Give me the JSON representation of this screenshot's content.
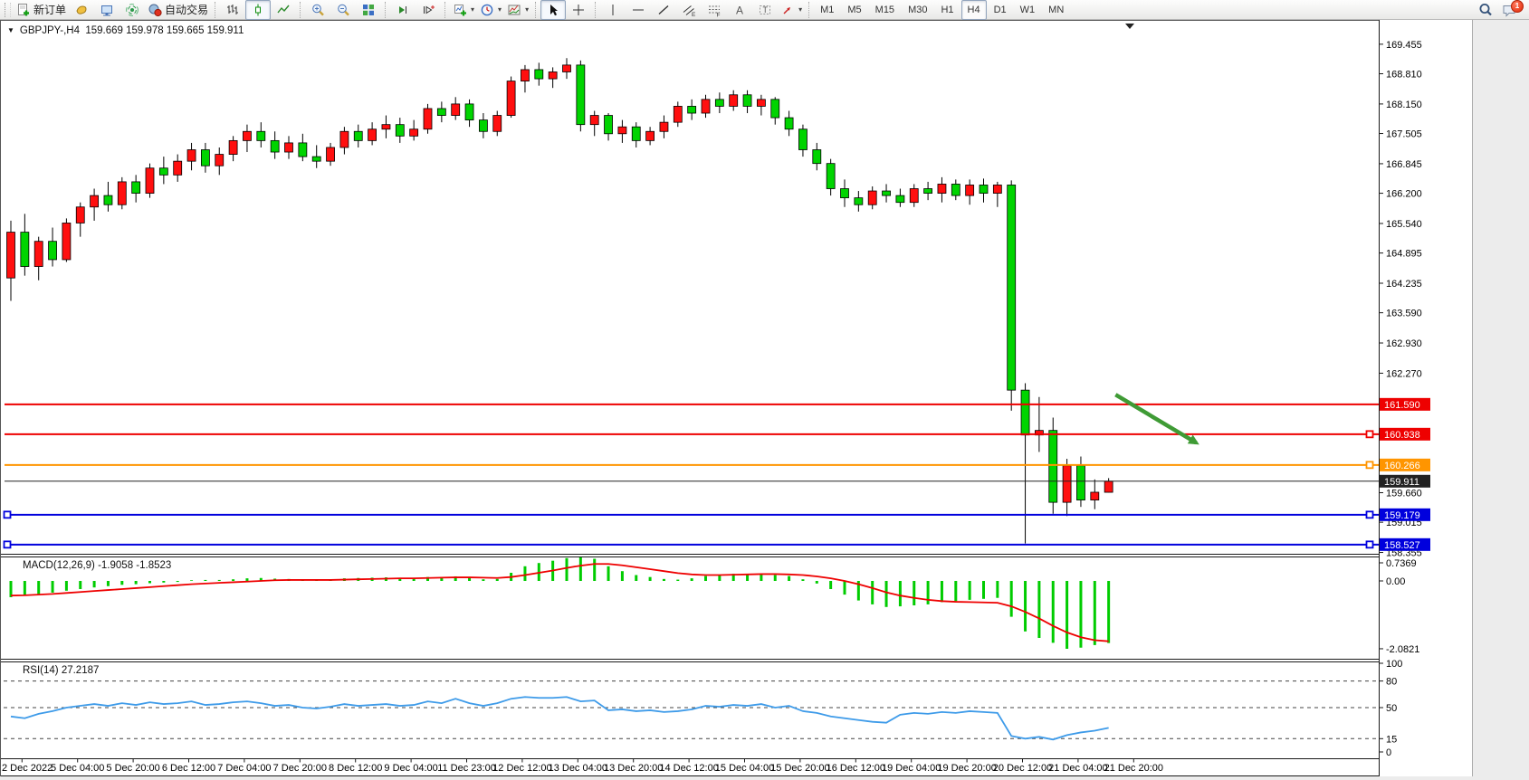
{
  "toolbar": {
    "new_order_label": "新订单",
    "autotrade_label": "自动交易",
    "timeframes": [
      "M1",
      "M5",
      "M15",
      "M30",
      "H1",
      "H4",
      "D1",
      "W1",
      "MN"
    ],
    "active_timeframe": "H4",
    "notification_count": "1"
  },
  "chart": {
    "title": "GBPJPY-,H4",
    "ohlc_text": "159.669 159.978 159.665 159.911",
    "macd_label": "MACD(12,26,9) -1.9058 -1.8523",
    "rsi_label": "RSI(14) 27.2187"
  },
  "axes": {
    "price_ticks": [
      "169.455",
      "168.810",
      "168.150",
      "167.505",
      "166.845",
      "166.200",
      "165.540",
      "164.895",
      "164.235",
      "163.590",
      "162.930",
      "162.270",
      "159.660",
      "159.015",
      "158.355"
    ],
    "macd_ticks": [
      "0.7369",
      "0.00",
      "-2.0821"
    ],
    "rsi_ticks": [
      "100",
      "80",
      "50",
      "15",
      "0"
    ],
    "rsi_dashed_levels": [
      80,
      50,
      15
    ],
    "dates": [
      "2 Dec 2022",
      "5 Dec 04:00",
      "5 Dec 20:00",
      "6 Dec 12:00",
      "7 Dec 04:00",
      "7 Dec 20:00",
      "8 Dec 12:00",
      "9 Dec 04:00",
      "11 Dec 23:00",
      "12 Dec 12:00",
      "13 Dec 04:00",
      "13 Dec 20:00",
      "14 Dec 12:00",
      "15 Dec 04:00",
      "15 Dec 20:00",
      "16 Dec 12:00",
      "19 Dec 04:00",
      "19 Dec 20:00",
      "20 Dec 12:00",
      "21 Dec 04:00",
      "21 Dec 20:00"
    ]
  },
  "levels": [
    {
      "label": "161.590",
      "price": 161.59,
      "color": "#ee0000",
      "text_color": "#ffffff",
      "width": 2,
      "handles": []
    },
    {
      "label": "160.938",
      "price": 160.938,
      "color": "#ee0000",
      "text_color": "#ffffff",
      "width": 2,
      "handles": [
        "right"
      ]
    },
    {
      "label": "160.266",
      "price": 160.266,
      "color": "#ff9500",
      "text_color": "#ffffff",
      "width": 2,
      "handles": [
        "right"
      ]
    },
    {
      "label": "159.911",
      "price": 159.911,
      "color": "#222222",
      "text_color": "#ffffff",
      "width": 1,
      "handles": []
    },
    {
      "label": "159.179",
      "price": 159.179,
      "color": "#0000dd",
      "text_color": "#ffffff",
      "width": 2,
      "handles": [
        "left",
        "right"
      ]
    },
    {
      "label": "158.527",
      "price": 158.527,
      "color": "#0000dd",
      "text_color": "#ffffff",
      "width": 2,
      "handles": [
        "left",
        "right"
      ]
    }
  ],
  "objects": {
    "trend_arrow": {
      "from_bar": 79.5,
      "from_price": 161.8,
      "to_bar": 85.3,
      "to_price": 160.75,
      "color": "#3f9b35"
    }
  },
  "chart_data": {
    "type": "candlestick",
    "symbol": "GBPJPY-",
    "timeframe": "H4",
    "bull_color": "#ff0f0f",
    "bear_color": "#00d400",
    "wick_color": "#000000",
    "price_axis_top": 169.455,
    "price_axis_bottom": 158.355,
    "candles": [
      [
        164.35,
        165.6,
        163.85,
        165.35
      ],
      [
        165.35,
        165.75,
        164.4,
        164.6
      ],
      [
        164.6,
        165.25,
        164.3,
        165.15
      ],
      [
        165.15,
        165.45,
        164.6,
        164.75
      ],
      [
        164.75,
        165.65,
        164.7,
        165.55
      ],
      [
        165.55,
        166.0,
        165.25,
        165.9
      ],
      [
        165.9,
        166.3,
        165.6,
        166.15
      ],
      [
        166.15,
        166.45,
        165.8,
        165.95
      ],
      [
        165.95,
        166.55,
        165.85,
        166.45
      ],
      [
        166.45,
        166.6,
        166.0,
        166.2
      ],
      [
        166.2,
        166.85,
        166.1,
        166.75
      ],
      [
        166.75,
        167.0,
        166.4,
        166.6
      ],
      [
        166.6,
        167.05,
        166.45,
        166.9
      ],
      [
        166.9,
        167.3,
        166.7,
        167.15
      ],
      [
        167.15,
        167.3,
        166.65,
        166.8
      ],
      [
        166.8,
        167.2,
        166.6,
        167.05
      ],
      [
        167.05,
        167.45,
        166.9,
        167.35
      ],
      [
        167.35,
        167.7,
        167.1,
        167.55
      ],
      [
        167.55,
        167.75,
        167.2,
        167.35
      ],
      [
        167.35,
        167.55,
        166.95,
        167.1
      ],
      [
        167.1,
        167.45,
        166.95,
        167.3
      ],
      [
        167.3,
        167.5,
        166.9,
        167.0
      ],
      [
        167.0,
        167.25,
        166.75,
        166.9
      ],
      [
        166.9,
        167.3,
        166.8,
        167.2
      ],
      [
        167.2,
        167.65,
        167.05,
        167.55
      ],
      [
        167.55,
        167.7,
        167.2,
        167.35
      ],
      [
        167.35,
        167.75,
        167.25,
        167.6
      ],
      [
        167.6,
        167.9,
        167.4,
        167.7
      ],
      [
        167.7,
        167.85,
        167.3,
        167.45
      ],
      [
        167.45,
        167.8,
        167.35,
        167.6
      ],
      [
        167.6,
        168.15,
        167.5,
        168.05
      ],
      [
        168.05,
        168.2,
        167.75,
        167.9
      ],
      [
        167.9,
        168.3,
        167.8,
        168.15
      ],
      [
        168.15,
        168.25,
        167.65,
        167.8
      ],
      [
        167.8,
        167.95,
        167.4,
        167.55
      ],
      [
        167.55,
        168.0,
        167.45,
        167.9
      ],
      [
        167.9,
        168.75,
        167.85,
        168.65
      ],
      [
        168.65,
        169.0,
        168.4,
        168.9
      ],
      [
        168.9,
        169.05,
        168.55,
        168.7
      ],
      [
        168.7,
        168.95,
        168.5,
        168.85
      ],
      [
        168.85,
        169.15,
        168.7,
        169.0
      ],
      [
        169.0,
        169.1,
        167.55,
        167.7
      ],
      [
        167.7,
        168.0,
        167.45,
        167.9
      ],
      [
        167.9,
        167.95,
        167.35,
        167.5
      ],
      [
        167.5,
        167.8,
        167.3,
        167.65
      ],
      [
        167.65,
        167.75,
        167.2,
        167.35
      ],
      [
        167.35,
        167.65,
        167.25,
        167.55
      ],
      [
        167.55,
        167.9,
        167.4,
        167.75
      ],
      [
        167.75,
        168.2,
        167.65,
        168.1
      ],
      [
        168.1,
        168.25,
        167.8,
        167.95
      ],
      [
        167.95,
        168.35,
        167.85,
        168.25
      ],
      [
        168.25,
        168.4,
        167.95,
        168.1
      ],
      [
        168.1,
        168.45,
        168.0,
        168.35
      ],
      [
        168.35,
        168.45,
        167.95,
        168.1
      ],
      [
        168.1,
        168.35,
        167.9,
        168.25
      ],
      [
        168.25,
        168.3,
        167.7,
        167.85
      ],
      [
        167.85,
        168.0,
        167.45,
        167.6
      ],
      [
        167.6,
        167.7,
        167.0,
        167.15
      ],
      [
        167.15,
        167.3,
        166.7,
        166.85
      ],
      [
        166.85,
        166.95,
        166.15,
        166.3
      ],
      [
        166.3,
        166.5,
        165.9,
        166.1
      ],
      [
        166.1,
        166.25,
        165.8,
        165.95
      ],
      [
        165.95,
        166.35,
        165.85,
        166.25
      ],
      [
        166.25,
        166.4,
        166.0,
        166.15
      ],
      [
        166.15,
        166.3,
        165.9,
        166.0
      ],
      [
        166.0,
        166.4,
        165.9,
        166.3
      ],
      [
        166.3,
        166.45,
        166.05,
        166.2
      ],
      [
        166.2,
        166.55,
        166.0,
        166.4
      ],
      [
        166.4,
        166.5,
        166.05,
        166.15
      ],
      [
        166.15,
        166.5,
        165.95,
        166.38
      ],
      [
        166.38,
        166.52,
        166.0,
        166.2
      ],
      [
        166.2,
        166.45,
        165.9,
        166.38
      ],
      [
        166.38,
        166.48,
        161.45,
        161.9
      ],
      [
        161.9,
        162.05,
        158.55,
        160.92
      ],
      [
        160.92,
        161.75,
        160.55,
        161.02
      ],
      [
        161.02,
        161.3,
        159.2,
        159.45
      ],
      [
        159.45,
        160.4,
        159.15,
        160.25
      ],
      [
        160.25,
        160.45,
        159.35,
        159.5
      ],
      [
        159.5,
        159.95,
        159.3,
        159.67
      ],
      [
        159.669,
        159.978,
        159.665,
        159.911
      ]
    ],
    "macd": {
      "params": "12,26,9",
      "main": -1.9058,
      "signal_value": -1.8523,
      "histogram_color": "#00cc00",
      "signal_color": "#ee0000",
      "histogram": [
        -0.5,
        -0.44,
        -0.4,
        -0.36,
        -0.3,
        -0.25,
        -0.2,
        -0.16,
        -0.12,
        -0.1,
        -0.07,
        -0.05,
        -0.03,
        0.02,
        0.03,
        0.03,
        0.05,
        0.08,
        0.09,
        0.07,
        0.06,
        0.04,
        0.03,
        0.04,
        0.08,
        0.09,
        0.1,
        0.11,
        0.09,
        0.08,
        0.12,
        0.12,
        0.14,
        0.1,
        0.05,
        0.06,
        0.25,
        0.45,
        0.55,
        0.62,
        0.7,
        0.7369,
        0.68,
        0.45,
        0.3,
        0.18,
        0.12,
        0.06,
        0.04,
        0.08,
        0.15,
        0.18,
        0.22,
        0.2,
        0.22,
        0.18,
        0.15,
        0.05,
        -0.08,
        -0.25,
        -0.42,
        -0.6,
        -0.72,
        -0.8,
        -0.78,
        -0.75,
        -0.72,
        -0.65,
        -0.62,
        -0.58,
        -0.55,
        -0.52,
        -1.1,
        -1.55,
        -1.75,
        -1.9,
        -2.0821,
        -2.05,
        -1.97,
        -1.9058
      ],
      "signal": [
        -0.45,
        -0.44,
        -0.42,
        -0.4,
        -0.37,
        -0.34,
        -0.31,
        -0.28,
        -0.25,
        -0.22,
        -0.19,
        -0.16,
        -0.13,
        -0.1,
        -0.08,
        -0.06,
        -0.04,
        -0.02,
        0.0,
        0.02,
        0.03,
        0.03,
        0.03,
        0.03,
        0.04,
        0.05,
        0.06,
        0.07,
        0.08,
        0.08,
        0.09,
        0.1,
        0.11,
        0.11,
        0.1,
        0.09,
        0.12,
        0.18,
        0.25,
        0.32,
        0.4,
        0.47,
        0.52,
        0.52,
        0.48,
        0.42,
        0.36,
        0.3,
        0.24,
        0.2,
        0.18,
        0.18,
        0.19,
        0.2,
        0.21,
        0.21,
        0.2,
        0.18,
        0.14,
        0.08,
        0.0,
        -0.1,
        -0.22,
        -0.35,
        -0.45,
        -0.52,
        -0.58,
        -0.62,
        -0.64,
        -0.65,
        -0.66,
        -0.67,
        -0.78,
        -0.95,
        -1.15,
        -1.38,
        -1.58,
        -1.73,
        -1.82,
        -1.8523
      ]
    },
    "rsi": {
      "period": 14,
      "current": 27.2187,
      "line_color": "#3e9be9",
      "values": [
        40,
        38,
        43,
        46,
        50,
        52,
        54,
        52,
        55,
        53,
        56,
        54,
        55,
        57,
        53,
        54,
        56,
        57,
        55,
        52,
        53,
        50,
        49,
        51,
        54,
        52,
        53,
        54,
        52,
        53,
        57,
        55,
        60,
        55,
        52,
        55,
        60,
        62,
        61,
        61,
        62,
        57,
        58,
        47,
        48,
        46,
        47,
        45,
        46,
        48,
        52,
        51,
        53,
        52,
        54,
        50,
        52,
        46,
        44,
        40,
        38,
        36,
        34,
        33,
        42,
        44,
        43,
        45,
        44,
        46,
        45,
        44,
        18,
        15,
        17,
        14,
        19,
        22,
        24,
        27.2187
      ]
    }
  }
}
